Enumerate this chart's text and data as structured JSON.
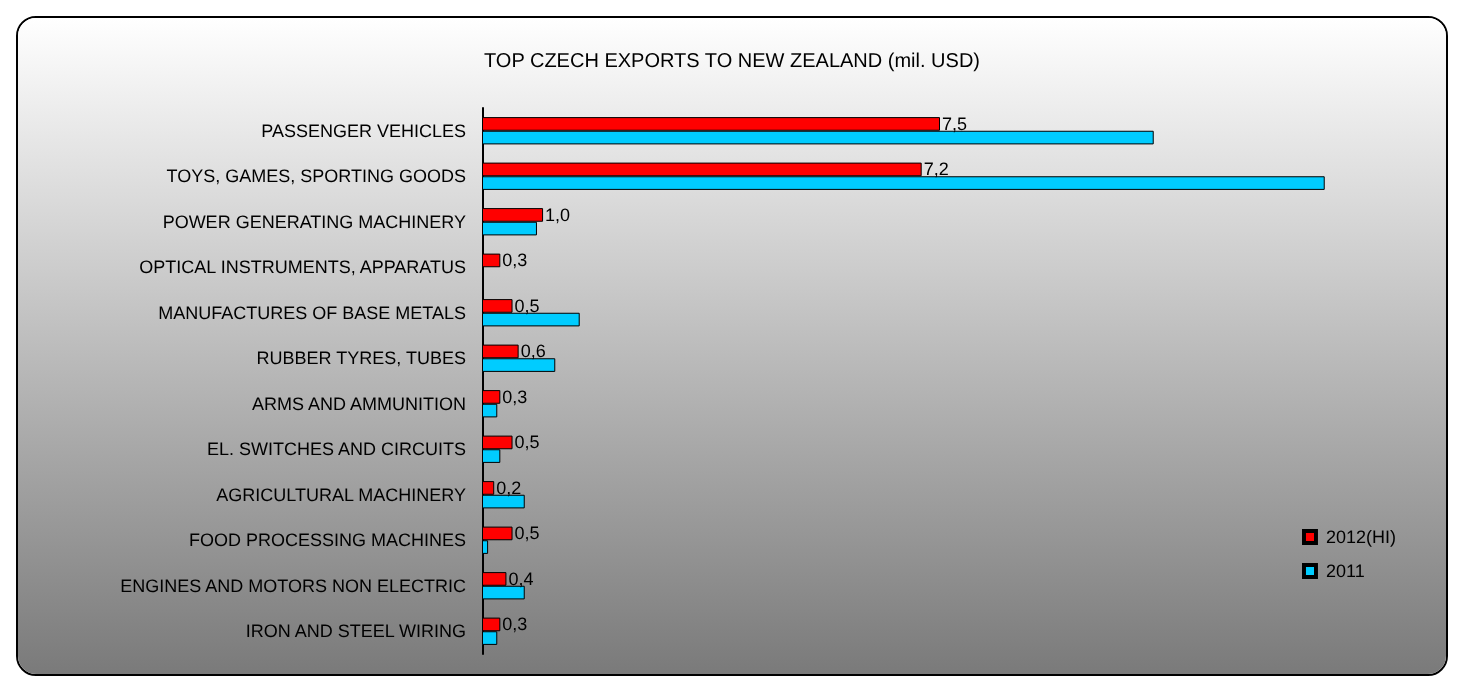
{
  "chart_data": {
    "type": "bar",
    "orientation": "horizontal",
    "title": "TOP CZECH EXPORTS TO NEW ZEALAND (mil. USD)",
    "categories": [
      "PASSENGER VEHICLES",
      "TOYS, GAMES, SPORTING GOODS",
      "POWER GENERATING MACHINERY",
      "OPTICAL INSTRUMENTS, APPARATUS",
      "MANUFACTURES OF BASE METALS",
      "RUBBER TYRES, TUBES",
      "ARMS AND AMMUNITION",
      "EL. SWITCHES AND CIRCUITS",
      "AGRICULTURAL MACHINERY",
      "FOOD PROCESSING MACHINES",
      "ENGINES AND MOTORS NON ELECTRIC",
      "IRON AND STEEL WIRING"
    ],
    "series": [
      {
        "name": "2012(HI)",
        "color": "#ff0000",
        "values": [
          7.5,
          7.2,
          1.0,
          0.3,
          0.5,
          0.6,
          0.3,
          0.5,
          0.2,
          0.5,
          0.4,
          0.3
        ],
        "value_labels": [
          "7,5",
          "7,2",
          "1,0",
          "0,3",
          "0,5",
          "0,6",
          "0,3",
          "0,5",
          "0,2",
          "0,5",
          "0,4",
          "0,3"
        ]
      },
      {
        "name": "2011",
        "color": "#00ccff",
        "values": [
          11.0,
          13.8,
          0.9,
          null,
          1.6,
          1.2,
          0.25,
          0.3,
          0.7,
          0.1,
          0.7,
          0.25
        ]
      }
    ],
    "legend": "right"
  }
}
